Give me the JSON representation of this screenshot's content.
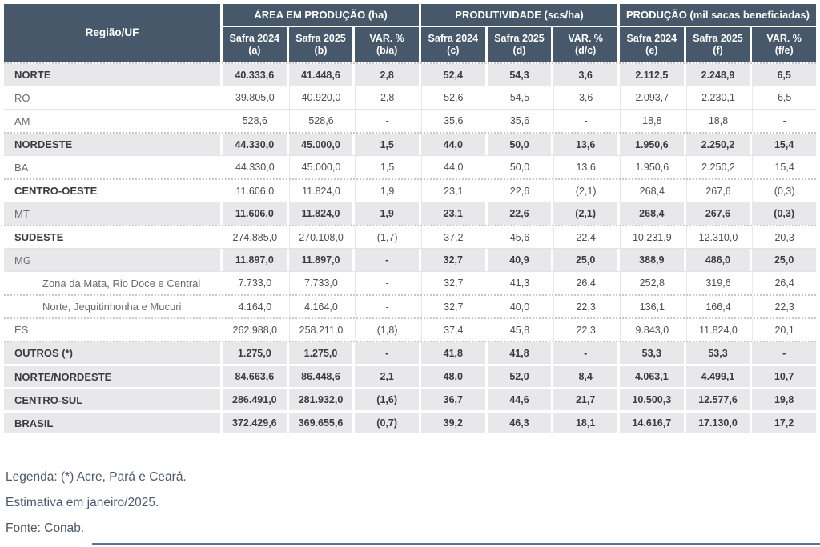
{
  "table": {
    "corner_label": "Região/UF",
    "groups": [
      {
        "label": "ÁREA EM PRODUÇÃO (ha)"
      },
      {
        "label": "PRODUTIVIDADE (scs/ha)"
      },
      {
        "label": "PRODUÇÃO (mil sacas beneficiadas)"
      }
    ],
    "subheaders": [
      {
        "line1": "Safra 2024",
        "line2": "(a)"
      },
      {
        "line1": "Safra 2025",
        "line2": "(b)"
      },
      {
        "line1": "VAR. %",
        "line2": "(b/a)"
      },
      {
        "line1": "Safra 2024",
        "line2": "(c)"
      },
      {
        "line1": "Safra 2025",
        "line2": "(d)"
      },
      {
        "line1": "VAR. %",
        "line2": "(d/c)"
      },
      {
        "line1": "Safra 2024",
        "line2": "(e)"
      },
      {
        "line1": "Safra 2025",
        "line2": "(f)"
      },
      {
        "line1": "VAR. %",
        "line2": "(f/e)"
      }
    ],
    "rows": [
      {
        "label": "NORTE",
        "values": [
          "40.333,6",
          "41.448,6",
          "2,8",
          "52,4",
          "54,3",
          "3,6",
          "2.112,5",
          "2.248,9",
          "6,5"
        ],
        "shaded": true,
        "label_bold": true,
        "values_bold": true,
        "indent": false,
        "sep_top": "dotted"
      },
      {
        "label": "RO",
        "values": [
          "39.805,0",
          "40.920,0",
          "2,8",
          "52,6",
          "54,5",
          "3,6",
          "2.093,7",
          "2.230,1",
          "6,5"
        ],
        "shaded": false,
        "label_bold": false,
        "values_bold": false,
        "indent": false,
        "sep_top": "solid"
      },
      {
        "label": "AM",
        "values": [
          "528,6",
          "528,6",
          "-",
          "35,6",
          "35,6",
          "-",
          "18,8",
          "18,8",
          "-"
        ],
        "shaded": false,
        "label_bold": false,
        "values_bold": false,
        "indent": false,
        "sep_top": "solid"
      },
      {
        "label": "NORDESTE",
        "values": [
          "44.330,0",
          "45.000,0",
          "1,5",
          "44,0",
          "50,0",
          "13,6",
          "1.950,6",
          "2.250,2",
          "15,4"
        ],
        "shaded": true,
        "label_bold": true,
        "values_bold": true,
        "indent": false,
        "sep_top": "dotted"
      },
      {
        "label": "BA",
        "values": [
          "44.330,0",
          "45.000,0",
          "1,5",
          "44,0",
          "50,0",
          "13,6",
          "1.950,6",
          "2.250,2",
          "15,4"
        ],
        "shaded": false,
        "label_bold": false,
        "values_bold": false,
        "indent": false,
        "sep_top": "solid"
      },
      {
        "label": "CENTRO-OESTE",
        "values": [
          "11.606,0",
          "11.824,0",
          "1,9",
          "23,1",
          "22,6",
          "(2,1)",
          "268,4",
          "267,6",
          "(0,3)"
        ],
        "shaded": false,
        "label_bold": true,
        "values_bold": false,
        "indent": false,
        "sep_top": "dotted"
      },
      {
        "label": "MT",
        "values": [
          "11.606,0",
          "11.824,0",
          "1,9",
          "23,1",
          "22,6",
          "(2,1)",
          "268,4",
          "267,6",
          "(0,3)"
        ],
        "shaded": true,
        "label_bold": false,
        "values_bold": true,
        "indent": false,
        "sep_top": "solid"
      },
      {
        "label": "SUDESTE",
        "values": [
          "274.885,0",
          "270.108,0",
          "(1,7)",
          "37,2",
          "45,6",
          "22,4",
          "10.231,9",
          "12.310,0",
          "20,3"
        ],
        "shaded": false,
        "label_bold": true,
        "values_bold": false,
        "indent": false,
        "sep_top": "dotted"
      },
      {
        "label": "MG",
        "values": [
          "11.897,0",
          "11.897,0",
          "-",
          "32,7",
          "40,9",
          "25,0",
          "388,9",
          "486,0",
          "25,0"
        ],
        "shaded": true,
        "label_bold": false,
        "values_bold": true,
        "indent": false,
        "sep_top": "solid"
      },
      {
        "label": "Zona da Mata, Rio Doce e Central",
        "values": [
          "7.733,0",
          "7.733,0",
          "-",
          "32,7",
          "41,3",
          "26,4",
          "252,8",
          "319,6",
          "26,4"
        ],
        "shaded": false,
        "label_bold": false,
        "values_bold": false,
        "indent": true,
        "sep_top": "solid"
      },
      {
        "label": "Norte, Jequitinhonha e Mucuri",
        "values": [
          "4.164,0",
          "4.164,0",
          "-",
          "32,7",
          "40,0",
          "22,3",
          "136,1",
          "166,4",
          "22,3"
        ],
        "shaded": false,
        "label_bold": false,
        "values_bold": false,
        "indent": true,
        "sep_top": "dotted"
      },
      {
        "label": "ES",
        "values": [
          "262.988,0",
          "258.211,0",
          "(1,8)",
          "37,4",
          "45,8",
          "22,3",
          "9.843,0",
          "11.824,0",
          "20,1"
        ],
        "shaded": false,
        "label_bold": false,
        "values_bold": false,
        "indent": false,
        "sep_top": "dotted"
      },
      {
        "label": "OUTROS (*)",
        "values": [
          "1.275,0",
          "1.275,0",
          "-",
          "41,8",
          "41,8",
          "-",
          "53,3",
          "53,3",
          "-"
        ],
        "shaded": true,
        "label_bold": true,
        "values_bold": true,
        "indent": false,
        "sep_top": "dotted"
      },
      {
        "label": "NORTE/NORDESTE",
        "values": [
          "84.663,6",
          "86.448,6",
          "2,1",
          "48,0",
          "52,0",
          "8,4",
          "4.063,1",
          "4.499,1",
          "10,7"
        ],
        "shaded": true,
        "label_bold": true,
        "values_bold": true,
        "indent": false,
        "sep_top": "gap"
      },
      {
        "label": "CENTRO-SUL",
        "values": [
          "286.491,0",
          "281.932,0",
          "(1,6)",
          "36,7",
          "44,6",
          "21,7",
          "10.500,3",
          "12.577,6",
          "19,8"
        ],
        "shaded": true,
        "label_bold": true,
        "values_bold": true,
        "indent": false,
        "sep_top": "gap"
      },
      {
        "label": "BRASIL",
        "values": [
          "372.429,6",
          "369.655,6",
          "(0,7)",
          "39,2",
          "46,3",
          "18,1",
          "14.616,7",
          "17.130,0",
          "17,2"
        ],
        "shaded": true,
        "label_bold": true,
        "values_bold": true,
        "indent": false,
        "sep_top": "gap"
      }
    ]
  },
  "footer": {
    "lines": [
      "Legenda: (*) Acre, Pará e Ceará.",
      "Estimativa em janeiro/2025.",
      "Fonte: Conab."
    ]
  },
  "colors": {
    "header_bg": "#47586a",
    "shaded_row_bg": "#e8e8eb",
    "accent_line": "#53749c"
  }
}
